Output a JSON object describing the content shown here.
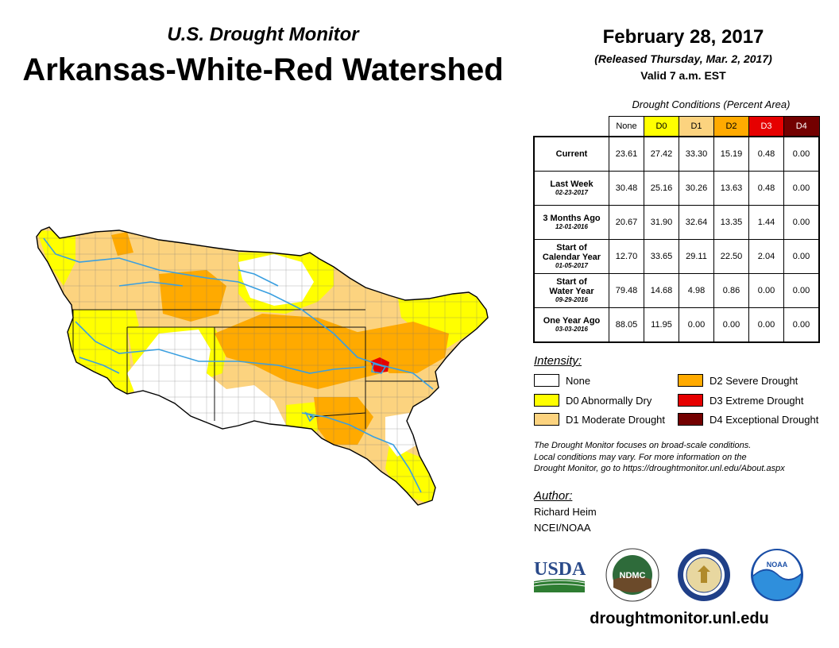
{
  "header": {
    "subtitle": "U.S. Drought Monitor",
    "title": "Arkansas-White-Red Watershed",
    "date": "February 28, 2017",
    "released": "(Released Thursday, Mar. 2, 2017)",
    "valid": "Valid 7 a.m. EST"
  },
  "table": {
    "caption": "Drought Conditions (Percent Area)",
    "columns": [
      "None",
      "D0",
      "D1",
      "D2",
      "D3",
      "D4"
    ],
    "rows": [
      {
        "label": "Current",
        "date": "",
        "values": [
          "23.61",
          "27.42",
          "33.30",
          "15.19",
          "0.48",
          "0.00"
        ]
      },
      {
        "label": "Last Week",
        "date": "02-23-2017",
        "values": [
          "30.48",
          "25.16",
          "30.26",
          "13.63",
          "0.48",
          "0.00"
        ]
      },
      {
        "label": "3 Months Ago",
        "date": "12-01-2016",
        "values": [
          "20.67",
          "31.90",
          "32.64",
          "13.35",
          "1.44",
          "0.00"
        ]
      },
      {
        "label": "Start of",
        "label2": "Calendar Year",
        "date": "01-05-2017",
        "values": [
          "12.70",
          "33.65",
          "29.11",
          "22.50",
          "2.04",
          "0.00"
        ]
      },
      {
        "label": "Start of",
        "label2": "Water Year",
        "date": "09-29-2016",
        "values": [
          "79.48",
          "14.68",
          "4.98",
          "0.86",
          "0.00",
          "0.00"
        ]
      },
      {
        "label": "One Year Ago",
        "date": "03-03-2016",
        "values": [
          "88.05",
          "11.95",
          "0.00",
          "0.00",
          "0.00",
          "0.00"
        ]
      }
    ]
  },
  "legend": {
    "title": "Intensity:",
    "items": [
      {
        "label": "None",
        "color": "#ffffff"
      },
      {
        "label": "D0 Abnormally Dry",
        "color": "#ffff00"
      },
      {
        "label": "D1 Moderate Drought",
        "color": "#fcd37f"
      },
      {
        "label": "D2 Severe Drought",
        "color": "#ffaa00"
      },
      {
        "label": "D3 Extreme Drought",
        "color": "#e60000"
      },
      {
        "label": "D4 Exceptional Drought",
        "color": "#730000"
      }
    ]
  },
  "note": {
    "line1": "The Drought Monitor focuses on broad-scale conditions.",
    "line2": "Local conditions may vary. For more information on the",
    "line3": "Drought Monitor, go to https://droughtmonitor.unl.edu/About.aspx"
  },
  "author": {
    "title": "Author:",
    "name": "Richard Heim",
    "org": "NCEI/NOAA"
  },
  "logos": {
    "usda": "USDA",
    "ndmc": "NDMC",
    "noaa": "NOAA"
  },
  "footer": {
    "url": "droughtmonitor.unl.edu"
  },
  "colors": {
    "none": "#ffffff",
    "d0": "#ffff00",
    "d1": "#fcd37f",
    "d2": "#ffaa00",
    "d3": "#e60000",
    "d4": "#730000",
    "river": "#3a9fe0"
  }
}
